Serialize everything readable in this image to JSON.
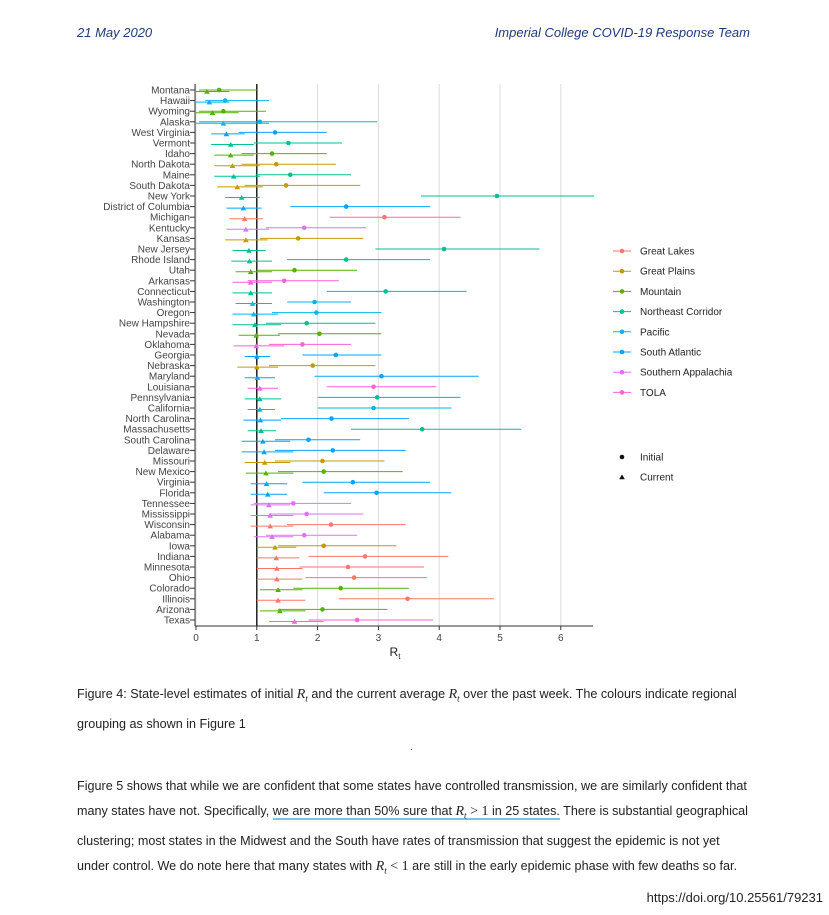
{
  "header": {
    "left": "21 May 2020",
    "right": "Imperial College COVID-19 Response Team"
  },
  "chart_data": {
    "type": "scatter",
    "xlabel": "R",
    "xlabel_sub": "t",
    "xlim": [
      0,
      6.5
    ],
    "xticks": [
      0,
      1,
      2,
      3,
      4,
      5,
      6
    ],
    "reference_line_x": 1,
    "grid": "vertical",
    "legend_position": "right",
    "legend": [
      {
        "name": "Great Lakes",
        "color": "#F8766D"
      },
      {
        "name": "Great Plains",
        "color": "#C49A00"
      },
      {
        "name": "Mountain",
        "color": "#53B400"
      },
      {
        "name": "Northeast Corridor",
        "color": "#00C094"
      },
      {
        "name": "Pacific",
        "color": "#00B6EB"
      },
      {
        "name": "South Atlantic",
        "color": "#06A4FF"
      },
      {
        "name": "Southern Appalachia",
        "color": "#DF70F8"
      },
      {
        "name": "TOLA",
        "color": "#FB61D7"
      }
    ],
    "shape_legend": [
      {
        "name": "Initial",
        "shape": "circle"
      },
      {
        "name": "Current",
        "shape": "triangle"
      }
    ],
    "states": [
      {
        "name": "Montana",
        "region": "Mountain",
        "initial": [
          0.38,
          0.05,
          1.0
        ],
        "current": [
          0.18,
          0.0,
          0.55
        ]
      },
      {
        "name": "Hawaii",
        "region": "Pacific",
        "initial": [
          0.48,
          0.15,
          1.2
        ],
        "current": [
          0.22,
          0.0,
          0.55
        ]
      },
      {
        "name": "Wyoming",
        "region": "Mountain",
        "initial": [
          0.45,
          0.05,
          1.15
        ],
        "current": [
          0.27,
          0.0,
          0.7
        ]
      },
      {
        "name": "Alaska",
        "region": "Pacific",
        "initial": [
          1.05,
          0.05,
          2.98
        ],
        "current": [
          0.45,
          0.0,
          1.2
        ]
      },
      {
        "name": "West Virginia",
        "region": "South Atlantic",
        "initial": [
          1.3,
          0.7,
          2.15
        ],
        "current": [
          0.5,
          0.25,
          0.8
        ]
      },
      {
        "name": "Vermont",
        "region": "Northeast Corridor",
        "initial": [
          1.52,
          0.95,
          2.4
        ],
        "current": [
          0.57,
          0.25,
          0.95
        ]
      },
      {
        "name": "Idaho",
        "region": "Mountain",
        "initial": [
          1.25,
          0.75,
          2.15
        ],
        "current": [
          0.57,
          0.3,
          0.95
        ]
      },
      {
        "name": "North Dakota",
        "region": "Great Plains",
        "initial": [
          1.32,
          0.75,
          2.3
        ],
        "current": [
          0.6,
          0.3,
          1.05
        ]
      },
      {
        "name": "Maine",
        "region": "Northeast Corridor",
        "initial": [
          1.55,
          0.98,
          2.55
        ],
        "current": [
          0.62,
          0.3,
          1.05
        ]
      },
      {
        "name": "South Dakota",
        "region": "Great Plains",
        "initial": [
          1.48,
          0.8,
          2.7
        ],
        "current": [
          0.68,
          0.35,
          1.1
        ]
      },
      {
        "name": "New York",
        "region": "Northeast Corridor",
        "initial": [
          4.95,
          3.7,
          6.55
        ],
        "current": [
          0.75,
          0.48,
          1.05
        ]
      },
      {
        "name": "District of Columbia",
        "region": "South Atlantic",
        "initial": [
          2.47,
          1.55,
          3.85
        ],
        "current": [
          0.78,
          0.5,
          1.08
        ]
      },
      {
        "name": "Michigan",
        "region": "Great Lakes",
        "initial": [
          3.1,
          2.2,
          4.35
        ],
        "current": [
          0.8,
          0.55,
          1.1
        ]
      },
      {
        "name": "Kentucky",
        "region": "Southern Appalachia",
        "initial": [
          1.78,
          1.15,
          2.8
        ],
        "current": [
          0.82,
          0.5,
          1.2
        ]
      },
      {
        "name": "Kansas",
        "region": "Great Plains",
        "initial": [
          1.68,
          1.05,
          2.75
        ],
        "current": [
          0.82,
          0.48,
          1.18
        ]
      },
      {
        "name": "New Jersey",
        "region": "Northeast Corridor",
        "initial": [
          4.08,
          2.95,
          5.65
        ],
        "current": [
          0.87,
          0.6,
          1.15
        ]
      },
      {
        "name": "Rhode Island",
        "region": "Northeast Corridor",
        "initial": [
          2.47,
          1.5,
          3.85
        ],
        "current": [
          0.88,
          0.58,
          1.25
        ]
      },
      {
        "name": "Utah",
        "region": "Mountain",
        "initial": [
          1.62,
          1.0,
          2.65
        ],
        "current": [
          0.9,
          0.65,
          1.25
        ]
      },
      {
        "name": "Arkansas",
        "region": "TOLA",
        "initial": [
          1.45,
          0.85,
          2.35
        ],
        "current": [
          0.9,
          0.6,
          1.25
        ]
      },
      {
        "name": "Connecticut",
        "region": "Northeast Corridor",
        "initial": [
          3.12,
          2.15,
          4.45
        ],
        "current": [
          0.9,
          0.6,
          1.25
        ]
      },
      {
        "name": "Washington",
        "region": "Pacific",
        "initial": [
          1.95,
          1.5,
          2.55
        ],
        "current": [
          0.93,
          0.65,
          1.25
        ]
      },
      {
        "name": "Oregon",
        "region": "Pacific",
        "initial": [
          1.98,
          1.25,
          3.05
        ],
        "current": [
          0.95,
          0.6,
          1.35
        ]
      },
      {
        "name": "New Hampshire",
        "region": "Northeast Corridor",
        "initial": [
          1.82,
          1.15,
          2.95
        ],
        "current": [
          0.97,
          0.6,
          1.4
        ]
      },
      {
        "name": "Nevada",
        "region": "Mountain",
        "initial": [
          2.03,
          1.35,
          3.05
        ],
        "current": [
          0.99,
          0.7,
          1.38
        ]
      },
      {
        "name": "Oklahoma",
        "region": "TOLA",
        "initial": [
          1.75,
          1.2,
          2.55
        ],
        "current": [
          0.99,
          0.62,
          1.45
        ]
      },
      {
        "name": "Georgia",
        "region": "South Atlantic",
        "initial": [
          2.3,
          1.75,
          3.05
        ],
        "current": [
          1.0,
          0.8,
          1.22
        ]
      },
      {
        "name": "Nebraska",
        "region": "Great Plains",
        "initial": [
          1.92,
          1.2,
          2.95
        ],
        "current": [
          1.0,
          0.68,
          1.35
        ]
      },
      {
        "name": "Maryland",
        "region": "South Atlantic",
        "initial": [
          3.05,
          1.95,
          4.65
        ],
        "current": [
          1.01,
          0.8,
          1.3
        ]
      },
      {
        "name": "Louisiana",
        "region": "TOLA",
        "initial": [
          2.92,
          2.15,
          3.95
        ],
        "current": [
          1.05,
          0.85,
          1.35
        ]
      },
      {
        "name": "Pennsylvania",
        "region": "Northeast Corridor",
        "initial": [
          2.98,
          2.0,
          4.35
        ],
        "current": [
          1.05,
          0.8,
          1.4
        ]
      },
      {
        "name": "California",
        "region": "Pacific",
        "initial": [
          2.92,
          2.0,
          4.2
        ],
        "current": [
          1.05,
          0.85,
          1.3
        ]
      },
      {
        "name": "North Carolina",
        "region": "South Atlantic",
        "initial": [
          2.23,
          1.4,
          3.5
        ],
        "current": [
          1.06,
          0.78,
          1.4
        ]
      },
      {
        "name": "Massachusetts",
        "region": "Northeast Corridor",
        "initial": [
          3.72,
          2.55,
          5.35
        ],
        "current": [
          1.07,
          0.85,
          1.32
        ]
      },
      {
        "name": "South Carolina",
        "region": "South Atlantic",
        "initial": [
          1.85,
          1.3,
          2.7
        ],
        "current": [
          1.1,
          0.75,
          1.55
        ]
      },
      {
        "name": "Delaware",
        "region": "South Atlantic",
        "initial": [
          2.25,
          1.3,
          3.45
        ],
        "current": [
          1.12,
          0.75,
          1.6
        ]
      },
      {
        "name": "Missouri",
        "region": "Great Plains",
        "initial": [
          2.08,
          1.3,
          3.1
        ],
        "current": [
          1.13,
          0.8,
          1.55
        ]
      },
      {
        "name": "New Mexico",
        "region": "Mountain",
        "initial": [
          2.1,
          1.35,
          3.4
        ],
        "current": [
          1.15,
          0.82,
          1.6
        ]
      },
      {
        "name": "Virginia",
        "region": "South Atlantic",
        "initial": [
          2.58,
          1.75,
          3.85
        ],
        "current": [
          1.16,
          0.9,
          1.5
        ]
      },
      {
        "name": "Florida",
        "region": "South Atlantic",
        "initial": [
          2.97,
          2.1,
          4.2
        ],
        "current": [
          1.18,
          0.9,
          1.5
        ]
      },
      {
        "name": "Tennessee",
        "region": "Southern Appalachia",
        "initial": [
          1.6,
          0.95,
          2.55
        ],
        "current": [
          1.2,
          0.9,
          1.55
        ]
      },
      {
        "name": "Mississippi",
        "region": "Southern Appalachia",
        "initial": [
          1.82,
          1.2,
          2.75
        ],
        "current": [
          1.22,
          0.9,
          1.6
        ]
      },
      {
        "name": "Wisconsin",
        "region": "Great Lakes",
        "initial": [
          2.22,
          1.5,
          3.45
        ],
        "current": [
          1.22,
          0.9,
          1.6
        ]
      },
      {
        "name": "Alabama",
        "region": "Southern Appalachia",
        "initial": [
          1.78,
          1.15,
          2.65
        ],
        "current": [
          1.25,
          0.95,
          1.6
        ]
      },
      {
        "name": "Iowa",
        "region": "Great Plains",
        "initial": [
          2.1,
          1.35,
          3.3
        ],
        "current": [
          1.3,
          1.0,
          1.65
        ]
      },
      {
        "name": "Indiana",
        "region": "Great Lakes",
        "initial": [
          2.78,
          1.85,
          4.15
        ],
        "current": [
          1.32,
          1.0,
          1.7
        ]
      },
      {
        "name": "Minnesota",
        "region": "Great Lakes",
        "initial": [
          2.5,
          1.7,
          3.75
        ],
        "current": [
          1.33,
          1.0,
          1.75
        ]
      },
      {
        "name": "Ohio",
        "region": "Great Lakes",
        "initial": [
          2.6,
          1.8,
          3.8
        ],
        "current": [
          1.33,
          1.0,
          1.75
        ]
      },
      {
        "name": "Colorado",
        "region": "Mountain",
        "initial": [
          2.38,
          1.6,
          3.5
        ],
        "current": [
          1.35,
          1.05,
          1.75
        ]
      },
      {
        "name": "Illinois",
        "region": "Great Lakes",
        "initial": [
          3.48,
          2.35,
          4.9
        ],
        "current": [
          1.35,
          1.0,
          1.8
        ]
      },
      {
        "name": "Arizona",
        "region": "Mountain",
        "initial": [
          2.08,
          1.35,
          3.15
        ],
        "current": [
          1.38,
          1.05,
          1.8
        ]
      },
      {
        "name": "Texas",
        "region": "TOLA",
        "initial": [
          2.65,
          1.85,
          3.9
        ],
        "current": [
          1.62,
          1.2,
          2.1
        ]
      }
    ]
  },
  "caption": {
    "prefix": "Figure 4: State-level estimates of initial ",
    "var1": "R",
    "sub1": "t",
    "mid": " and the current average ",
    "var2": "R",
    "sub2": "t",
    "suffix": " over the past week. The colours indicate regional grouping as shown in Figure 1"
  },
  "body": {
    "text1": "Figure 5 shows that while we are confident that some states have controlled transmission, we are similarly confident that many states have not. Specifically, ",
    "hl_prefix": "we are more than 50% sure that ",
    "hl_math_var": "R",
    "hl_math_sub": "t",
    "hl_math_rel": " > 1",
    "hl_suffix": " in 25 states.",
    "text2": " There is substantial geographical clustering; most states in the Midwest and the South have rates of transmission that suggest the epidemic is not yet under control. We do note here that many states with ",
    "math2_var": "R",
    "math2_sub": "t",
    "math2_rel": " < 1",
    "text3": " are still in the early epidemic phase with few deaths so far."
  },
  "stray_mark": ".",
  "doi": "https://doi.org/10.25561/79231"
}
